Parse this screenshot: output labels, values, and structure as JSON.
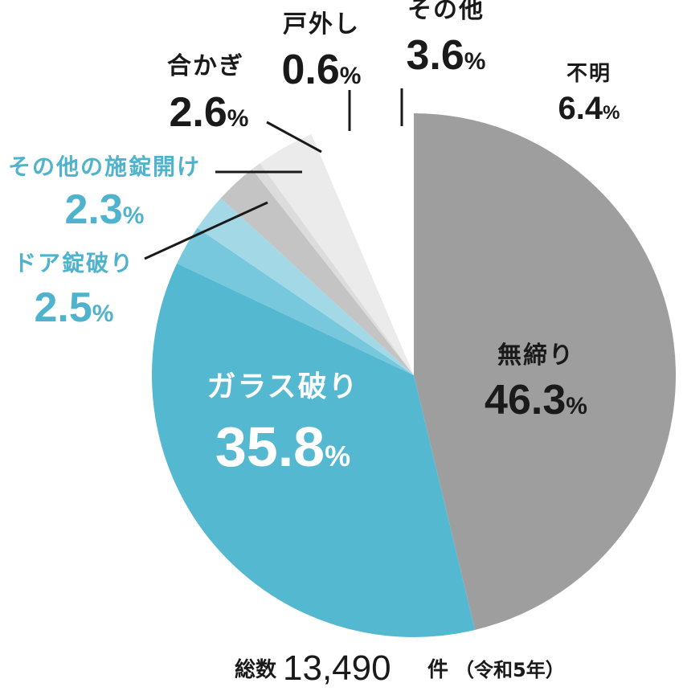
{
  "chart_data": {
    "type": "pie",
    "start": "12 o'clock",
    "direction": "clockwise",
    "percent_sign": "%",
    "slices": [
      {
        "label": "無締り",
        "value_text": "46.3",
        "value": 46.3,
        "color": "#9e9e9e"
      },
      {
        "label": "ガラス破り",
        "value_text": "35.8",
        "value": 35.8,
        "color": "#54b8d1"
      },
      {
        "label": "ドア錠破り",
        "value_text": "2.5",
        "value": 2.5,
        "color": "#77c8dc"
      },
      {
        "label": "その他の施錠開け",
        "value_text": "2.3",
        "value": 2.3,
        "color": "#a3d9e7"
      },
      {
        "label": "合かぎ",
        "value_text": "2.6",
        "value": 2.6,
        "color": "#c4c4c4"
      },
      {
        "label": "戸外し",
        "value_text": "0.6",
        "value": 0.6,
        "color": "#dcdcdc"
      },
      {
        "label": "その他",
        "value_text": "3.6",
        "value": 3.6,
        "color": "#ebebeb"
      },
      {
        "label": "不明",
        "value_text": "6.4",
        "value": 6.4,
        "color": "#ffffff"
      }
    ],
    "colors": {
      "dark_text": "#1a1a1a",
      "blue_text": "#4fb3cd",
      "white_text": "#ffffff",
      "leader": "#1a1a1a"
    }
  },
  "total": {
    "label": "総数",
    "number": "13,490",
    "unit": "件",
    "note": "（令和5年）"
  }
}
